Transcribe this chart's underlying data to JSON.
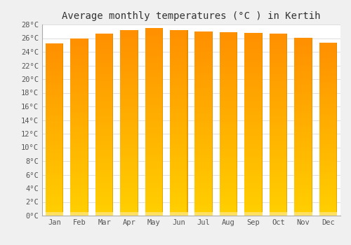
{
  "title": "Average monthly temperatures (°C ) in Kertih",
  "months": [
    "Jan",
    "Feb",
    "Mar",
    "Apr",
    "May",
    "Jun",
    "Jul",
    "Aug",
    "Sep",
    "Oct",
    "Nov",
    "Dec"
  ],
  "temperatures": [
    25.2,
    25.9,
    26.7,
    27.2,
    27.5,
    27.2,
    27.0,
    26.9,
    26.8,
    26.7,
    26.0,
    25.3
  ],
  "ylim": [
    0,
    28
  ],
  "yticks": [
    0,
    2,
    4,
    6,
    8,
    10,
    12,
    14,
    16,
    18,
    20,
    22,
    24,
    26,
    28
  ],
  "bar_color_bottom": "#FFB300",
  "bar_color_top": "#FF9500",
  "bar_edge_color": "#CC8800",
  "background_color": "#F0F0F0",
  "plot_bg_color": "#FFFFFF",
  "grid_color": "#DDDDDD",
  "title_fontsize": 10,
  "tick_fontsize": 7.5
}
